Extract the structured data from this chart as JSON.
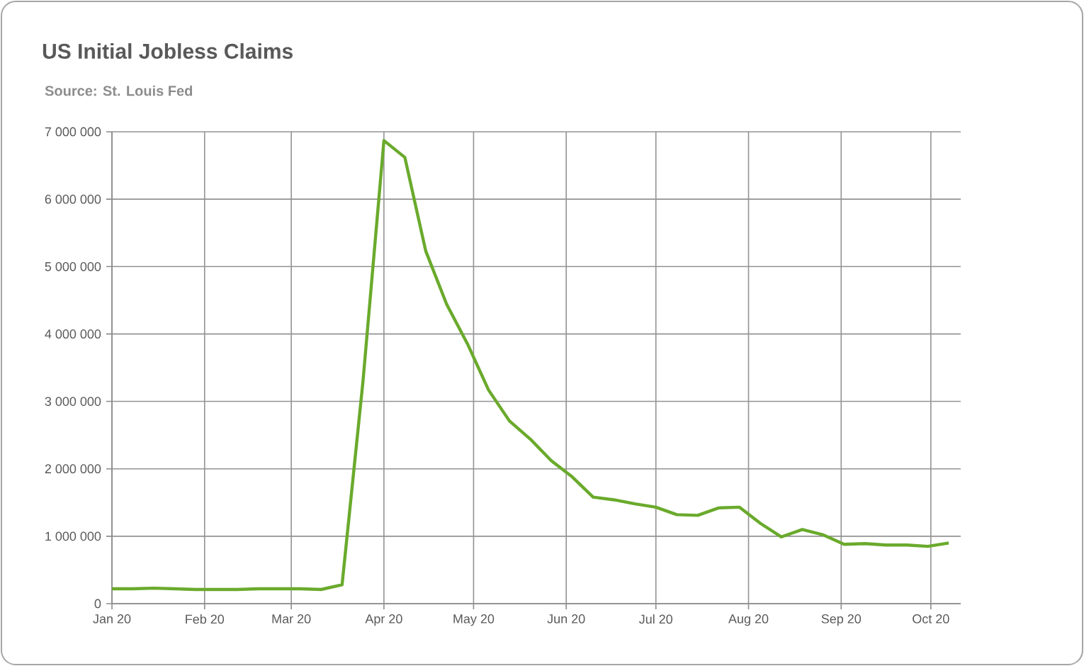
{
  "chart_data": {
    "type": "line",
    "title": "US Initial Jobless Claims",
    "subtitle": "Source: St. Louis Fed",
    "x": [
      "2020-01-01",
      "2020-01-08",
      "2020-01-15",
      "2020-01-22",
      "2020-01-29",
      "2020-02-05",
      "2020-02-12",
      "2020-02-19",
      "2020-02-26",
      "2020-03-04",
      "2020-03-11",
      "2020-03-18",
      "2020-03-25",
      "2020-04-01",
      "2020-04-08",
      "2020-04-15",
      "2020-04-22",
      "2020-04-29",
      "2020-05-06",
      "2020-05-13",
      "2020-05-20",
      "2020-05-27",
      "2020-06-03",
      "2020-06-10",
      "2020-06-17",
      "2020-06-24",
      "2020-07-01",
      "2020-07-08",
      "2020-07-15",
      "2020-07-22",
      "2020-07-29",
      "2020-08-05",
      "2020-08-12",
      "2020-08-19",
      "2020-08-26",
      "2020-09-02",
      "2020-09-09",
      "2020-09-16",
      "2020-09-23",
      "2020-09-30",
      "2020-10-07"
    ],
    "series": [
      {
        "color": "#6aaa2c",
        "values": [
          220000,
          220000,
          230000,
          220000,
          210000,
          210000,
          210000,
          220000,
          220000,
          220000,
          210000,
          280000,
          3300000,
          6870000,
          6620000,
          5230000,
          4440000,
          3850000,
          3170000,
          2710000,
          2440000,
          2120000,
          1880000,
          1580000,
          1540000,
          1480000,
          1430000,
          1320000,
          1310000,
          1420000,
          1430000,
          1190000,
          990000,
          1100000,
          1020000,
          880000,
          890000,
          870000,
          870000,
          850000,
          900000
        ]
      }
    ],
    "xlim": [
      "2020-01-01",
      "2020-10-11"
    ],
    "xticks": [
      {
        "value": "2020-01-01",
        "label": "Jan 20"
      },
      {
        "value": "2020-02-01",
        "label": "Feb 20"
      },
      {
        "value": "2020-03-01",
        "label": "Mar 20"
      },
      {
        "value": "2020-04-01",
        "label": "Apr 20"
      },
      {
        "value": "2020-05-01",
        "label": "May 20"
      },
      {
        "value": "2020-06-01",
        "label": "Jun 20"
      },
      {
        "value": "2020-07-01",
        "label": "Jul 20"
      },
      {
        "value": "2020-08-01",
        "label": "Aug 20"
      },
      {
        "value": "2020-09-01",
        "label": "Sep 20"
      },
      {
        "value": "2020-10-01",
        "label": "Oct 20"
      }
    ],
    "ylim": [
      0,
      7000000
    ],
    "yticks": [
      {
        "value": 0,
        "label": "0"
      },
      {
        "value": 1000000,
        "label": "1 000 000"
      },
      {
        "value": 2000000,
        "label": "2 000 000"
      },
      {
        "value": 3000000,
        "label": "3 000 000"
      },
      {
        "value": 4000000,
        "label": "4 000 000"
      },
      {
        "value": 5000000,
        "label": "5 000 000"
      },
      {
        "value": 6000000,
        "label": "6 000 000"
      },
      {
        "value": 7000000,
        "label": "7 000 000"
      }
    ],
    "grid": true,
    "marker": "none",
    "line_style": "solid"
  }
}
